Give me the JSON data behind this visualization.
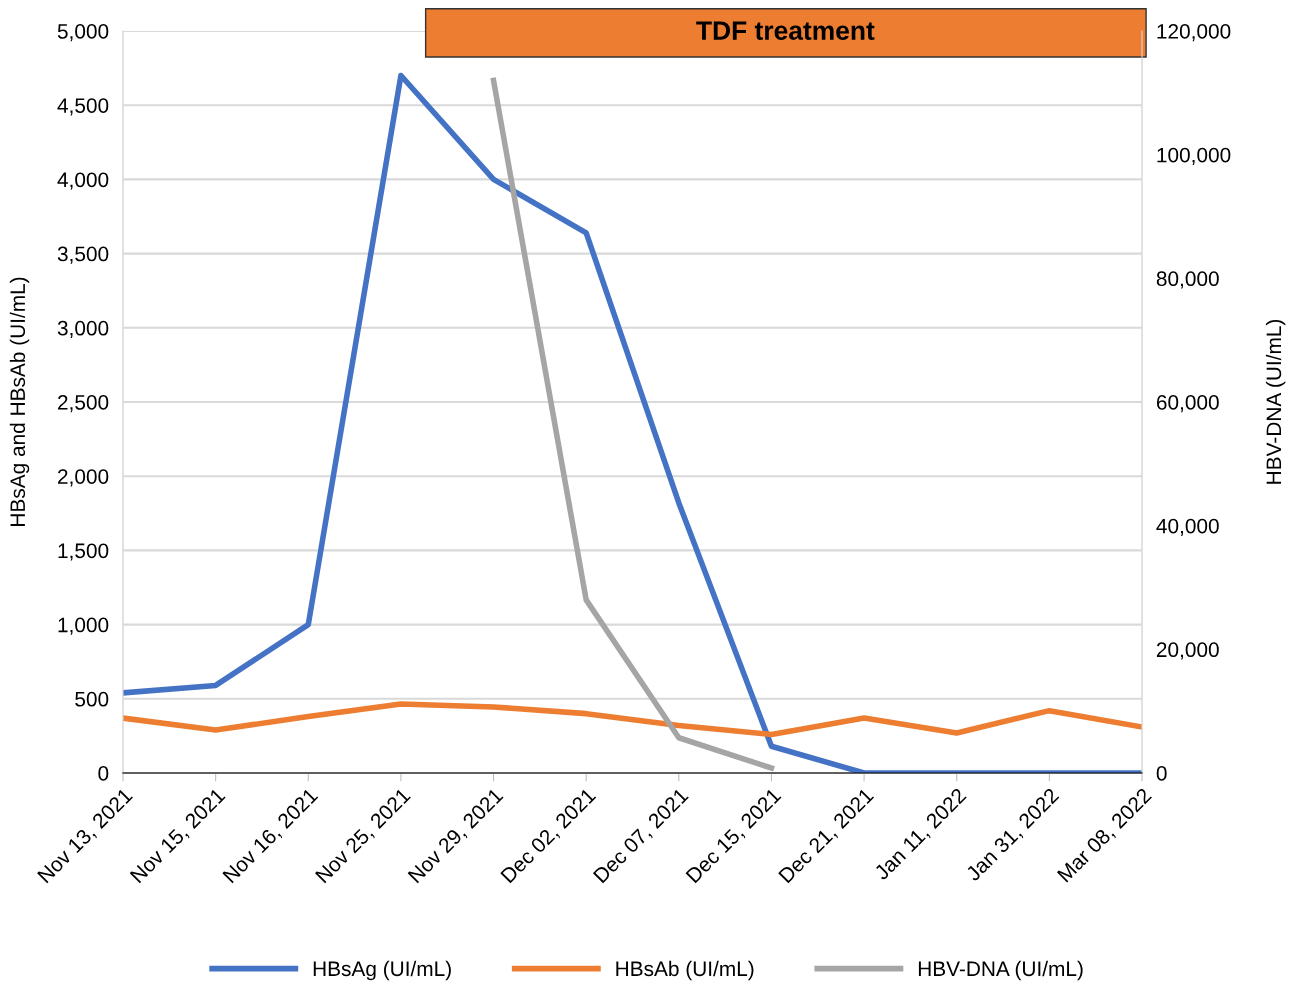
{
  "chart_data": {
    "type": "line",
    "categories": [
      "Nov 13, 2021",
      "Nov 15, 2021",
      "Nov 16, 2021",
      "Nov 25, 2021",
      "Nov 29, 2021",
      "Dec 02, 2021",
      "Dec 07, 2021",
      "Dec 15, 2021",
      "Dec 21, 2021",
      "Jan 11, 2022",
      "Jan 31, 2022",
      "Mar 08, 2022"
    ],
    "series": [
      {
        "name": "HBsAg (UI/mL)",
        "color": "#4472c4",
        "values": [
          540,
          590,
          1000,
          4700,
          4000,
          3640,
          1820,
          180,
          0,
          0,
          0,
          0
        ]
      },
      {
        "name": "HBsAb (UI/mL)",
        "color": "#ed7d31",
        "values": [
          370,
          290,
          380,
          465,
          445,
          400,
          320,
          260,
          370,
          270,
          420,
          310
        ]
      },
      {
        "name": "HBV-DNA (UI/mL)",
        "color": "#a5a5a5",
        "axis": "y2",
        "values": [
          null,
          null,
          null,
          null,
          112000,
          28000,
          5700,
          800,
          null,
          null,
          null,
          null
        ]
      }
    ],
    "ylabel": "HBsAg and HBsAb (UI/mL)",
    "y2label": "HBV-DNA (UI/mL)",
    "ylim": [
      0,
      5000
    ],
    "yticks": [
      {
        "value": 0,
        "label": "0"
      },
      {
        "value": 500,
        "label": "500"
      },
      {
        "value": 1000,
        "label": "1,000"
      },
      {
        "value": 1500,
        "label": "1,500"
      },
      {
        "value": 2000,
        "label": "2,000"
      },
      {
        "value": 2500,
        "label": "2,500"
      },
      {
        "value": 3000,
        "label": "3,000"
      },
      {
        "value": 3500,
        "label": "3,500"
      },
      {
        "value": 4000,
        "label": "4,000"
      },
      {
        "value": 4500,
        "label": "4,500"
      },
      {
        "value": 5000,
        "label": "5,000"
      }
    ],
    "y2lim": [
      0,
      120000
    ],
    "y2ticks": [
      {
        "value": 0,
        "label": "0"
      },
      {
        "value": 20000,
        "label": "20,000"
      },
      {
        "value": 40000,
        "label": "40,000"
      },
      {
        "value": 60000,
        "label": "60,000"
      },
      {
        "value": 80000,
        "label": "80,000"
      },
      {
        "value": 100000,
        "label": "100,000"
      },
      {
        "value": 120000,
        "label": "120,000"
      }
    ],
    "annotations": [
      "TDF treatment"
    ],
    "grid": "y",
    "legend": "bottom",
    "marker": "none",
    "line_style": "solid"
  }
}
